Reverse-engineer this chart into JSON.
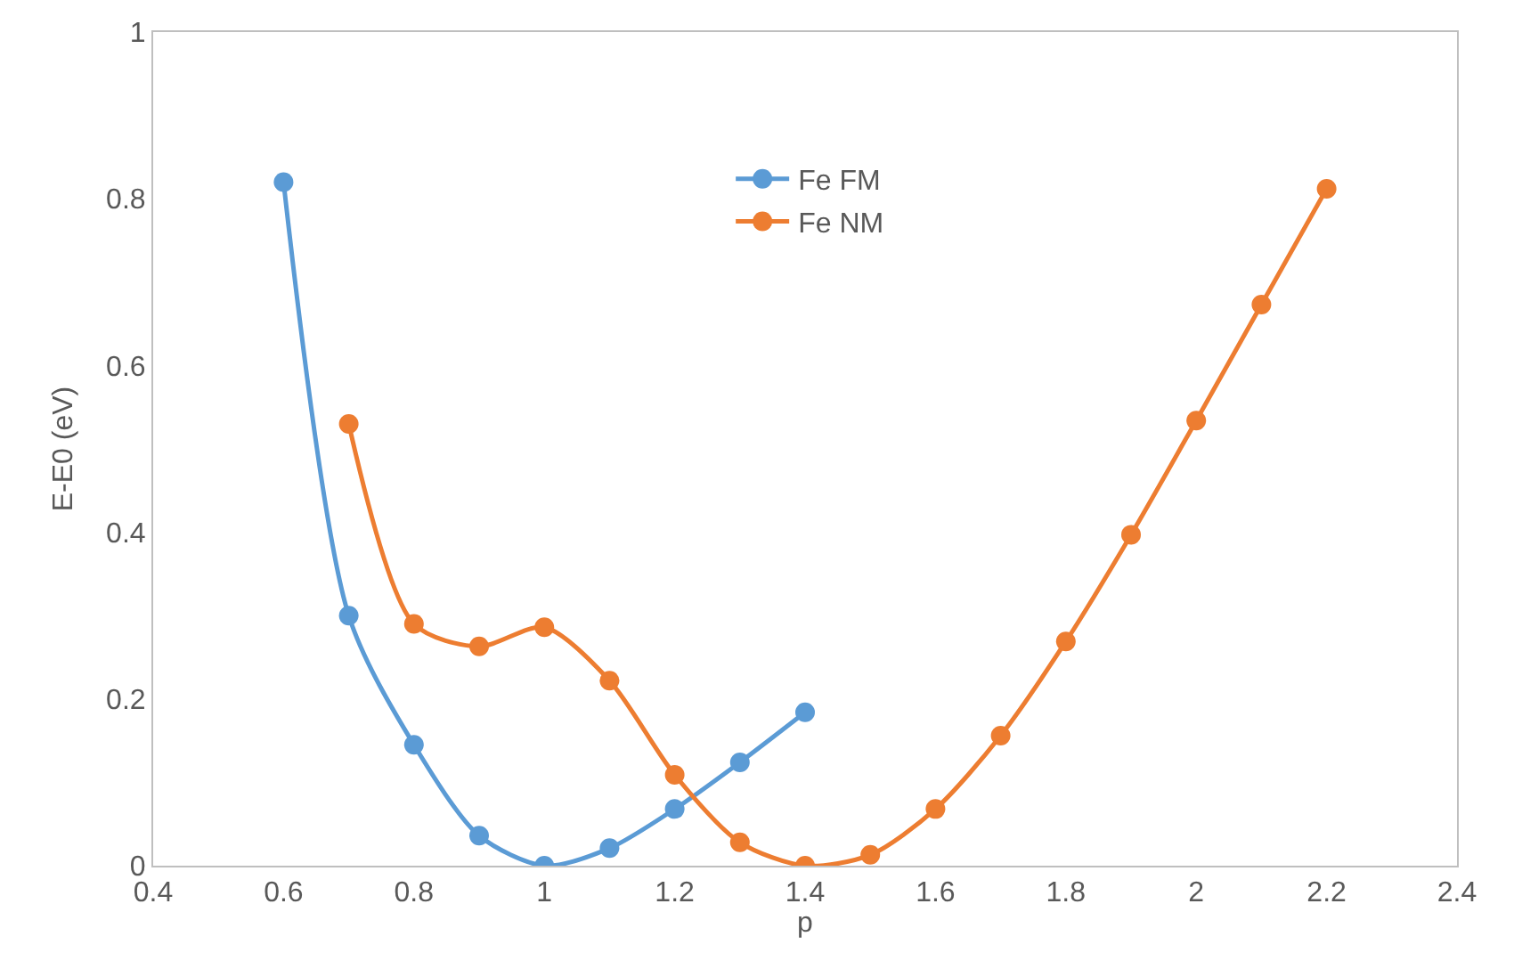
{
  "chart_data": {
    "type": "line",
    "xlabel": "p",
    "ylabel": "E-E0 (eV)",
    "xlim": [
      0.4,
      2.4
    ],
    "xticks": [
      0.4,
      0.6,
      0.8,
      1,
      1.2,
      1.4,
      1.6,
      1.8,
      2,
      2.2,
      2.4
    ],
    "ylim": [
      0,
      1
    ],
    "yticks": [
      0,
      0.2,
      0.4,
      0.6,
      0.8,
      1
    ],
    "grid": false,
    "legend": "top",
    "marker": "circle",
    "line_style": "solid",
    "series": [
      {
        "name": "Fe FM",
        "color": "#5b9bd5",
        "x": [
          0.6,
          0.7,
          0.8,
          0.9,
          1,
          1.1,
          1.2,
          1.3,
          1.4
        ],
        "values": [
          0.82,
          0.3,
          0.145,
          0.036,
          0,
          0.021,
          0.068,
          0.124,
          0.184
        ]
      },
      {
        "name": "Fe NM",
        "color": "#ed7d31",
        "x": [
          0.7,
          0.8,
          0.9,
          1,
          1.1,
          1.2,
          1.3,
          1.4,
          1.5,
          1.6,
          1.7,
          1.8,
          1.9,
          2,
          2.1,
          2.2
        ],
        "values": [
          0.53,
          0.29,
          0.263,
          0.286,
          0.222,
          0.109,
          0.028,
          0,
          0.013,
          0.068,
          0.156,
          0.269,
          0.397,
          0.534,
          0.673,
          0.812
        ]
      }
    ]
  }
}
